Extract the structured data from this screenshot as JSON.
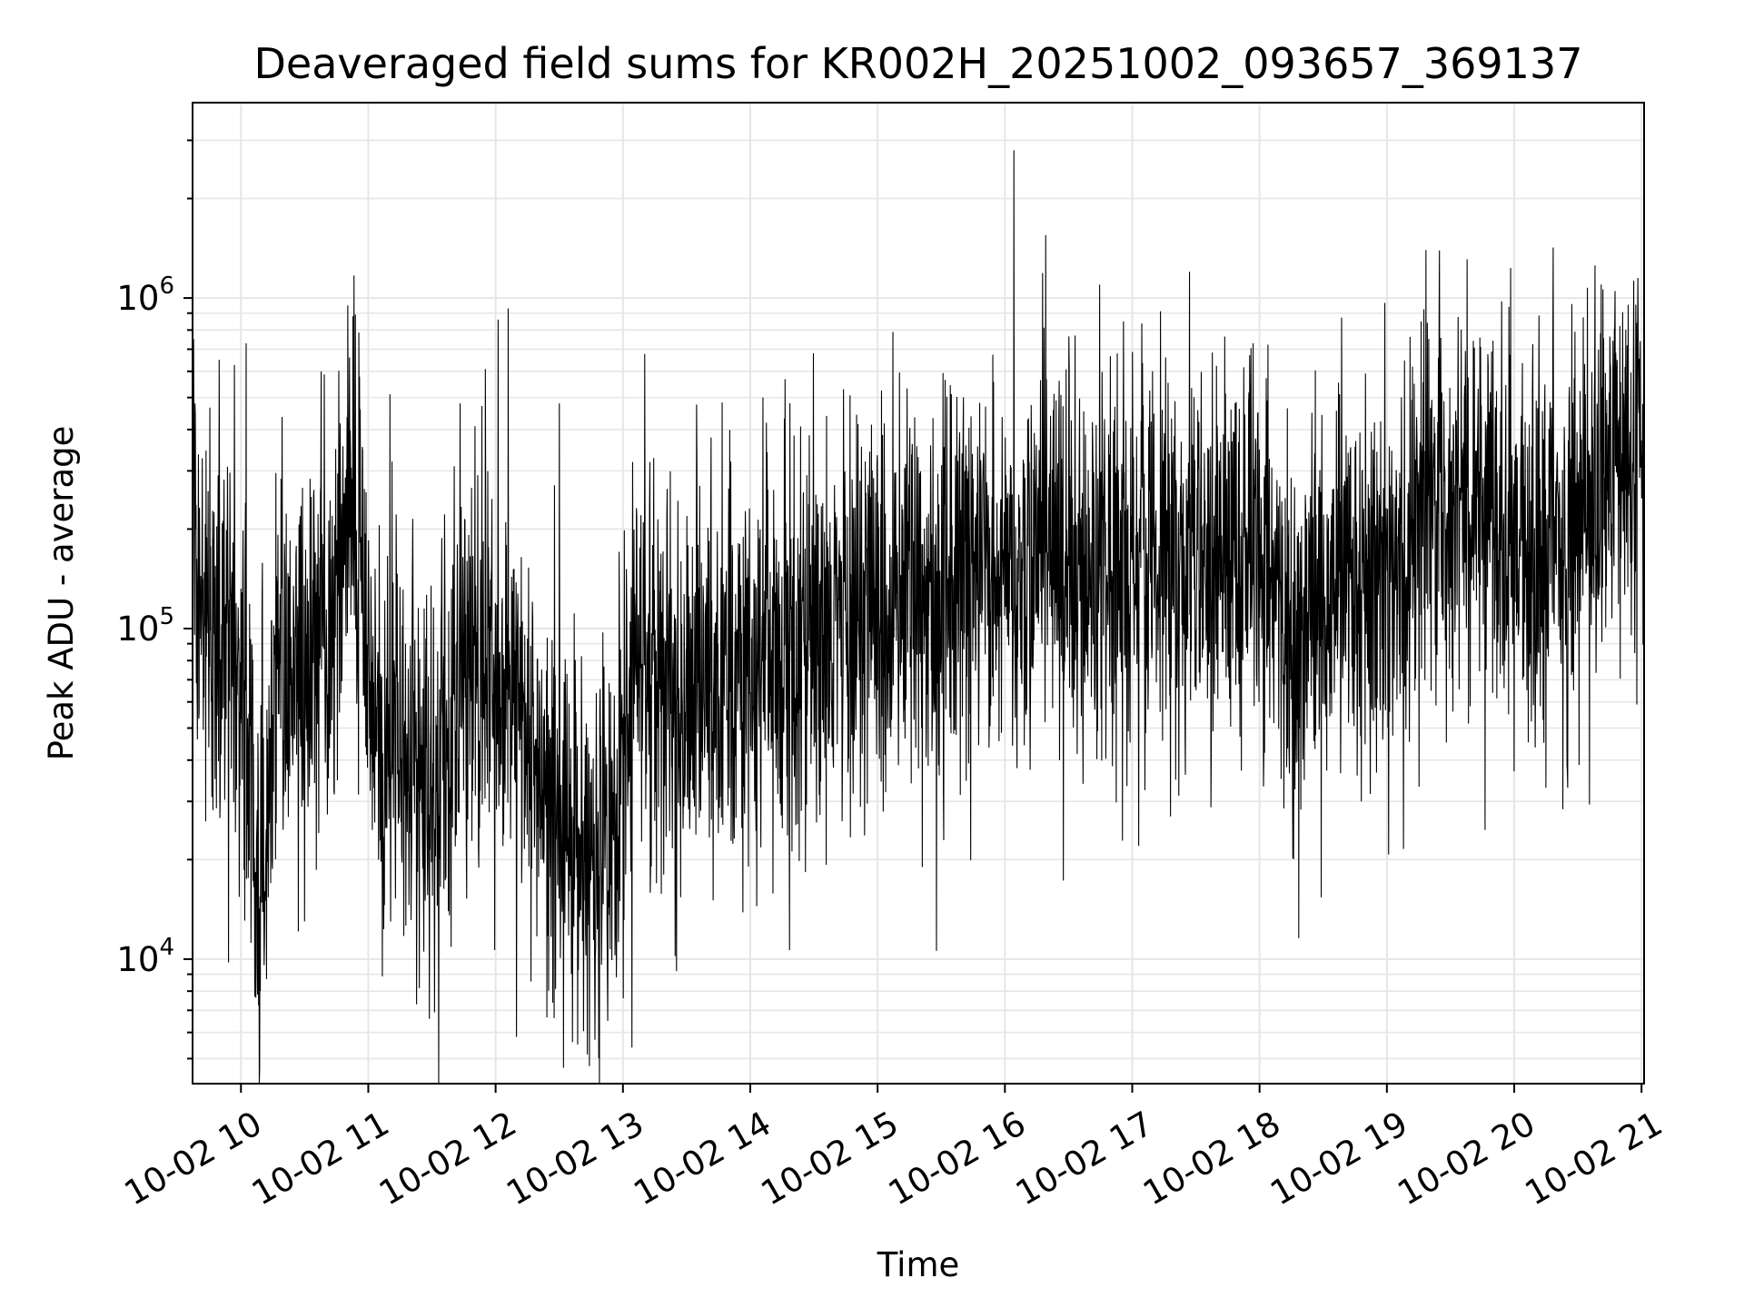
{
  "chart_data": {
    "type": "line",
    "title": "Deaveraged field sums for KR002H_20251002_093657_369137",
    "xlabel": "Time",
    "ylabel": "Peak ADU - average",
    "yscale": "log",
    "ylim": [
      4200,
      3900000
    ],
    "xlim_hours": [
      9.62,
      21.02
    ],
    "grid": true,
    "line_color": "#000000",
    "grid_color": "#e6e6e6",
    "x_ticks": [
      {
        "hour": 10,
        "label": "10-02 10"
      },
      {
        "hour": 11,
        "label": "10-02 11"
      },
      {
        "hour": 12,
        "label": "10-02 12"
      },
      {
        "hour": 13,
        "label": "10-02 13"
      },
      {
        "hour": 14,
        "label": "10-02 14"
      },
      {
        "hour": 15,
        "label": "10-02 15"
      },
      {
        "hour": 16,
        "label": "10-02 16"
      },
      {
        "hour": 17,
        "label": "10-02 17"
      },
      {
        "hour": 18,
        "label": "10-02 18"
      },
      {
        "hour": 19,
        "label": "10-02 19"
      },
      {
        "hour": 20,
        "label": "10-02 20"
      },
      {
        "hour": 21,
        "label": "10-02 21"
      }
    ],
    "y_ticks": [
      {
        "value": 10000,
        "base": "10",
        "exponent": "4"
      },
      {
        "value": 100000,
        "base": "10",
        "exponent": "5"
      },
      {
        "value": 1000000,
        "base": "10",
        "exponent": "6"
      }
    ],
    "series": [
      {
        "name": "Peak ADU - average",
        "hours": [
          9.62,
          9.65,
          9.7,
          9.78,
          9.85,
          9.92,
          10.0,
          10.05,
          10.08,
          10.12,
          10.15,
          10.2,
          10.25,
          10.3,
          10.38,
          10.45,
          10.52,
          10.6,
          10.68,
          10.75,
          10.82,
          10.87,
          10.92,
          10.97,
          11.02,
          11.1,
          11.2,
          11.3,
          11.4,
          11.45,
          11.5,
          11.6,
          11.7,
          11.8,
          11.9,
          12.0,
          12.1,
          12.2,
          12.3,
          12.42,
          12.55,
          12.65,
          12.75,
          12.85,
          12.95,
          13.02,
          13.1,
          13.2,
          13.35,
          13.5,
          13.65,
          13.8,
          14.0,
          14.2,
          14.4,
          14.6,
          14.8,
          15.0,
          15.2,
          15.4,
          15.6,
          15.8,
          16.0,
          16.2,
          16.4,
          16.6,
          16.8,
          17.0,
          17.2,
          17.4,
          17.6,
          17.8,
          18.0,
          18.2,
          18.3,
          18.5,
          18.7,
          18.9,
          19.05,
          19.2,
          19.4,
          19.6,
          19.8,
          20.0,
          20.2,
          20.4,
          20.6,
          20.8,
          20.95,
          21.02
        ],
        "values": [
          300000,
          160000,
          120000,
          100000,
          95000,
          90000,
          80000,
          60000,
          30000,
          20000,
          18000,
          25000,
          60000,
          80000,
          70000,
          90000,
          80000,
          100000,
          90000,
          120000,
          200000,
          250000,
          200000,
          100000,
          60000,
          50000,
          50000,
          40000,
          35000,
          30000,
          28000,
          40000,
          60000,
          70000,
          80000,
          70000,
          60000,
          50000,
          40000,
          30000,
          25000,
          22000,
          20000,
          22000,
          25000,
          50000,
          80000,
          70000,
          60000,
          65000,
          70000,
          75000,
          80000,
          85000,
          90000,
          100000,
          110000,
          115000,
          120000,
          125000,
          135000,
          140000,
          150000,
          160000,
          165000,
          160000,
          155000,
          160000,
          160000,
          165000,
          170000,
          175000,
          170000,
          110000,
          100000,
          135000,
          140000,
          150000,
          140000,
          180000,
          220000,
          230000,
          210000,
          190000,
          200000,
          210000,
          220000,
          300000,
          380000,
          420000
        ],
        "spikes": [
          {
            "hour": 9.64,
            "value": 480000
          },
          {
            "hour": 9.83,
            "value": 650000
          },
          {
            "hour": 10.04,
            "value": 730000
          },
          {
            "hour": 10.12,
            "value": 9500
          },
          {
            "hour": 10.2,
            "value": 8700
          },
          {
            "hour": 10.5,
            "value": 13000
          },
          {
            "hour": 10.63,
            "value": 600000
          },
          {
            "hour": 10.84,
            "value": 950000
          },
          {
            "hour": 10.88,
            "value": 880000
          },
          {
            "hour": 11.38,
            "value": 7300
          },
          {
            "hour": 11.48,
            "value": 6600
          },
          {
            "hour": 11.52,
            "value": 6900
          },
          {
            "hour": 11.72,
            "value": 480000
          },
          {
            "hour": 11.92,
            "value": 610000
          },
          {
            "hour": 12.02,
            "value": 860000
          },
          {
            "hour": 12.1,
            "value": 930000
          },
          {
            "hour": 12.5,
            "value": 480000
          },
          {
            "hour": 12.78,
            "value": 5700
          },
          {
            "hour": 12.88,
            "value": 6500
          },
          {
            "hour": 13.07,
            "value": 5400
          },
          {
            "hour": 13.42,
            "value": 9200
          },
          {
            "hour": 14.1,
            "value": 500000
          },
          {
            "hour": 14.6,
            "value": 440000
          },
          {
            "hour": 15.12,
            "value": 790000
          },
          {
            "hour": 15.35,
            "value": 19000
          },
          {
            "hour": 16.07,
            "value": 2800000
          },
          {
            "hour": 16.32,
            "value": 1550000
          },
          {
            "hour": 16.55,
            "value": 770000
          },
          {
            "hour": 16.93,
            "value": 850000
          },
          {
            "hour": 17.05,
            "value": 22000
          },
          {
            "hour": 17.3,
            "value": 27000
          },
          {
            "hour": 17.45,
            "value": 1200000
          },
          {
            "hour": 17.95,
            "value": 730000
          },
          {
            "hour": 18.8,
            "value": 30000
          },
          {
            "hour": 19.2,
            "value": 620000
          },
          {
            "hour": 20.0,
            "value": 37000
          },
          {
            "hour": 20.25,
            "value": 33000
          },
          {
            "hour": 20.42,
            "value": 33000
          },
          {
            "hour": 20.97,
            "value": 1150000
          }
        ]
      }
    ]
  }
}
